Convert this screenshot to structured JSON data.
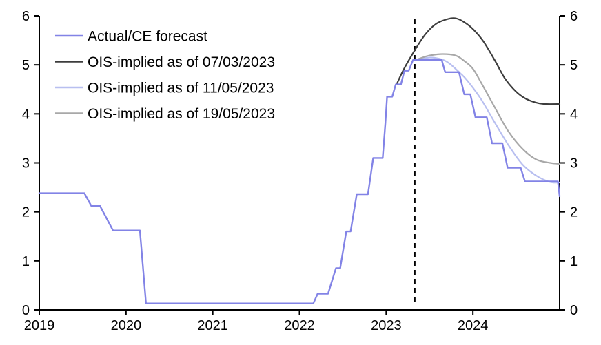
{
  "chart_data": {
    "type": "line",
    "title": "",
    "xlabel": "",
    "ylabel": "",
    "grid": false,
    "legend_position": "top-left",
    "x_axis": {
      "min": 2019.0,
      "max": 2025.0,
      "tick_values": [
        2019,
        2020,
        2021,
        2022,
        2023,
        2024
      ],
      "tick_labels": [
        "2019",
        "2020",
        "2021",
        "2022",
        "2023",
        "2024"
      ]
    },
    "y_axis": {
      "min": 0,
      "max": 6,
      "tick_values": [
        0,
        1,
        2,
        3,
        4,
        5,
        6
      ],
      "tick_labels": [
        "0",
        "1",
        "2",
        "3",
        "4",
        "5",
        "6"
      ],
      "sides": "both"
    },
    "vline": {
      "x": 2023.33,
      "style": "dashed",
      "color": "#000000"
    },
    "axis_color": "#000000",
    "series": [
      {
        "name": "OIS-implied as of 11/05/2023",
        "color": "#b8bff0",
        "width": 2.2,
        "smooth": true,
        "points": [
          [
            2023.36,
            5.1
          ],
          [
            2023.5,
            5.15
          ],
          [
            2023.62,
            5.12
          ],
          [
            2023.72,
            5.04
          ],
          [
            2023.86,
            4.82
          ],
          [
            2023.94,
            4.67
          ],
          [
            2024.09,
            4.31
          ],
          [
            2024.25,
            3.83
          ],
          [
            2024.41,
            3.36
          ],
          [
            2024.57,
            2.97
          ],
          [
            2024.73,
            2.74
          ],
          [
            2024.89,
            2.61
          ],
          [
            2025.0,
            2.6
          ]
        ]
      },
      {
        "name": "OIS-implied as of 19/05/2023",
        "color": "#a8a8a8",
        "width": 2.2,
        "smooth": true,
        "points": [
          [
            2023.37,
            5.12
          ],
          [
            2023.5,
            5.19
          ],
          [
            2023.65,
            5.22
          ],
          [
            2023.8,
            5.19
          ],
          [
            2023.9,
            5.08
          ],
          [
            2024.0,
            4.92
          ],
          [
            2024.1,
            4.62
          ],
          [
            2024.25,
            4.14
          ],
          [
            2024.41,
            3.64
          ],
          [
            2024.57,
            3.29
          ],
          [
            2024.73,
            3.07
          ],
          [
            2024.89,
            3.0
          ],
          [
            2025.0,
            2.98
          ]
        ]
      },
      {
        "name": "OIS-implied as of 07/03/2023",
        "color": "#3d3d3d",
        "width": 2.2,
        "smooth": true,
        "points": [
          [
            2023.12,
            4.6
          ],
          [
            2023.2,
            4.9
          ],
          [
            2023.32,
            5.27
          ],
          [
            2023.45,
            5.62
          ],
          [
            2023.57,
            5.83
          ],
          [
            2023.7,
            5.93
          ],
          [
            2023.8,
            5.95
          ],
          [
            2023.9,
            5.87
          ],
          [
            2024.0,
            5.73
          ],
          [
            2024.12,
            5.48
          ],
          [
            2024.25,
            5.1
          ],
          [
            2024.37,
            4.72
          ],
          [
            2024.5,
            4.45
          ],
          [
            2024.62,
            4.3
          ],
          [
            2024.75,
            4.22
          ],
          [
            2024.85,
            4.2
          ],
          [
            2025.0,
            4.2
          ]
        ]
      },
      {
        "name": "Actual/CE forecast",
        "color": "#8283e6",
        "width": 2.4,
        "smooth": false,
        "points": [
          [
            2019.0,
            2.38
          ],
          [
            2019.52,
            2.38
          ],
          [
            2019.6,
            2.12
          ],
          [
            2019.7,
            2.12
          ],
          [
            2019.85,
            1.62
          ],
          [
            2020.16,
            1.62
          ],
          [
            2020.23,
            0.13
          ],
          [
            2022.16,
            0.13
          ],
          [
            2022.21,
            0.33
          ],
          [
            2022.33,
            0.33
          ],
          [
            2022.42,
            0.85
          ],
          [
            2022.47,
            0.85
          ],
          [
            2022.54,
            1.6
          ],
          [
            2022.59,
            1.6
          ],
          [
            2022.66,
            2.36
          ],
          [
            2022.79,
            2.36
          ],
          [
            2022.85,
            3.1
          ],
          [
            2022.96,
            3.1
          ],
          [
            2022.99,
            3.8
          ],
          [
            2023.01,
            4.35
          ],
          [
            2023.07,
            4.35
          ],
          [
            2023.11,
            4.6
          ],
          [
            2023.17,
            4.6
          ],
          [
            2023.21,
            4.88
          ],
          [
            2023.26,
            4.88
          ],
          [
            2023.31,
            5.1
          ],
          [
            2023.64,
            5.1
          ],
          [
            2023.68,
            4.85
          ],
          [
            2023.84,
            4.85
          ],
          [
            2023.9,
            4.4
          ],
          [
            2023.97,
            4.4
          ],
          [
            2024.03,
            3.93
          ],
          [
            2024.16,
            3.93
          ],
          [
            2024.22,
            3.4
          ],
          [
            2024.34,
            3.4
          ],
          [
            2024.4,
            2.9
          ],
          [
            2024.55,
            2.9
          ],
          [
            2024.6,
            2.62
          ],
          [
            2024.98,
            2.62
          ],
          [
            2025.0,
            2.32
          ]
        ]
      }
    ],
    "legend": {
      "entries": [
        {
          "label": "Actual/CE forecast",
          "color": "#8283e6"
        },
        {
          "label": "OIS-implied as of 07/03/2023",
          "color": "#3d3d3d"
        },
        {
          "label": "OIS-implied as of 11/05/2023",
          "color": "#b8bff0"
        },
        {
          "label": "OIS-implied as of 19/05/2023",
          "color": "#a8a8a8"
        }
      ]
    }
  }
}
